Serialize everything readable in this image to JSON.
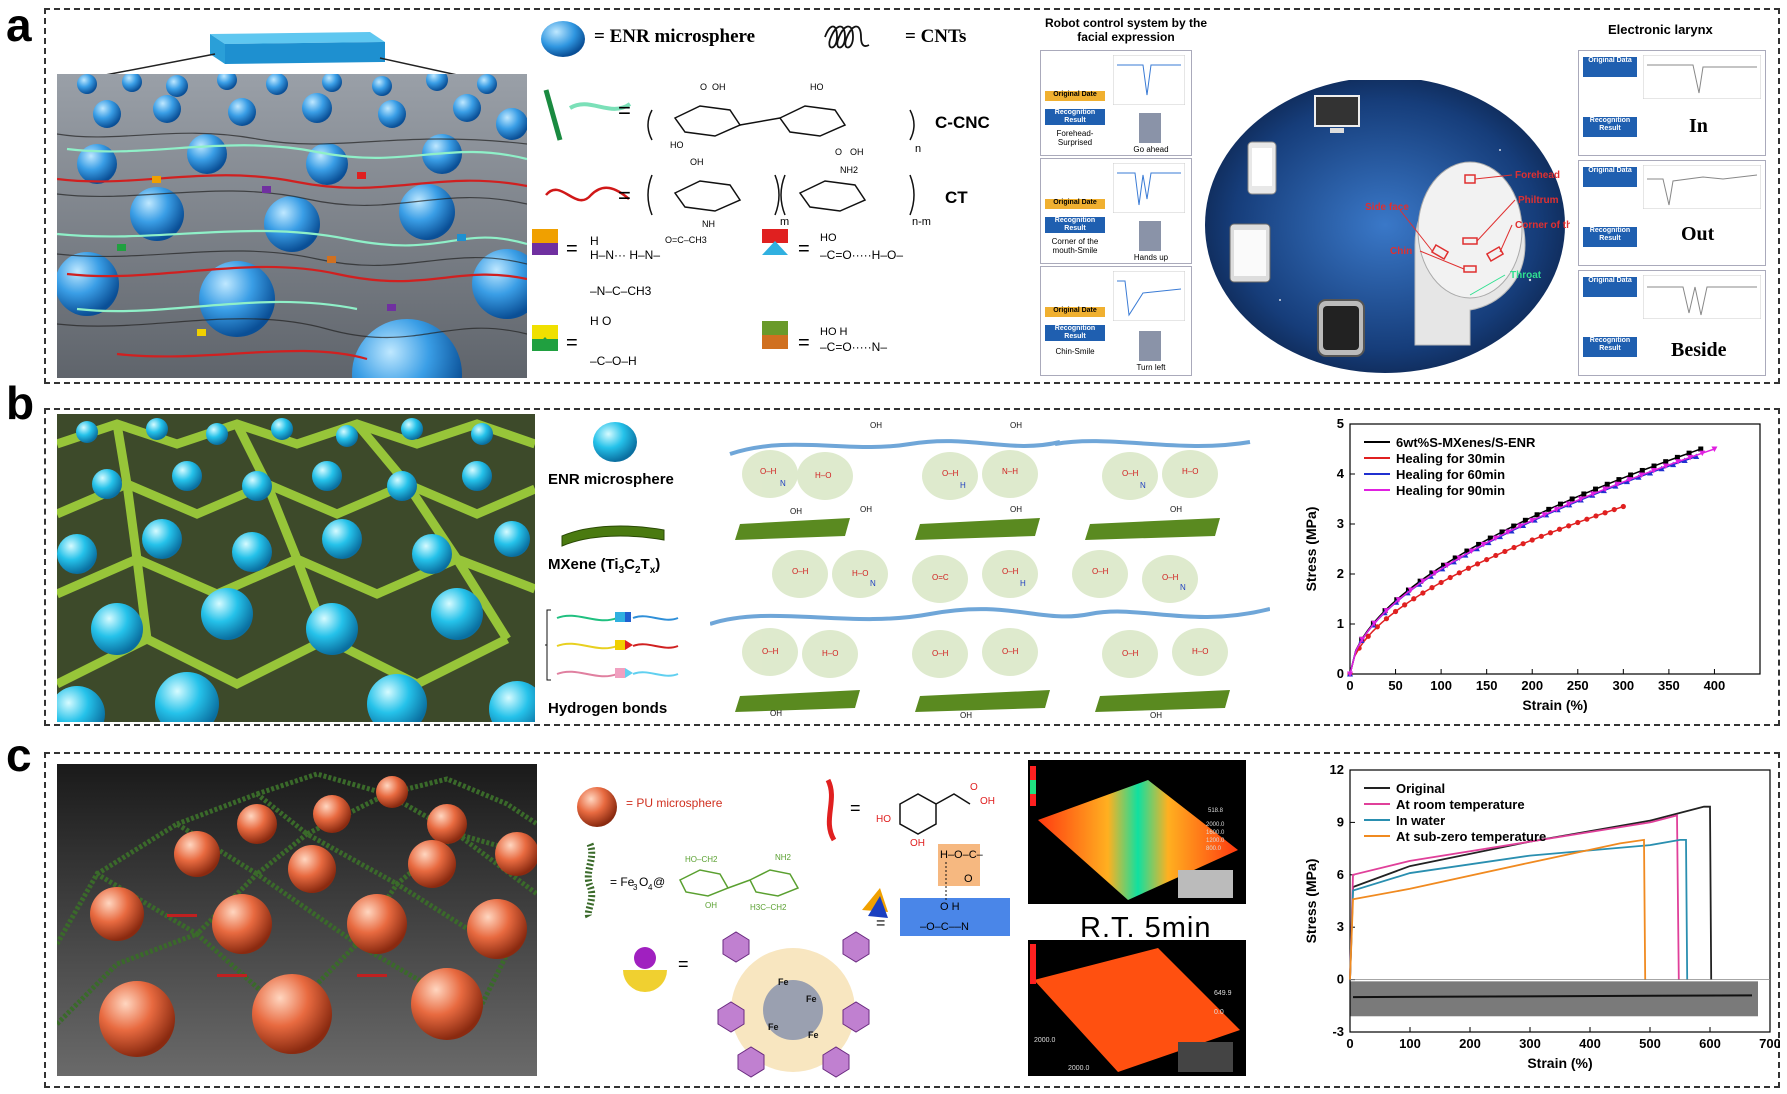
{
  "labels": {
    "a": "a",
    "b": "b",
    "c": "c"
  },
  "panel_a": {
    "legend": {
      "enr": "= ENR microsphere",
      "cnts": "= CNTs",
      "ccnc": "C-CNC",
      "ct": "CT"
    },
    "robot": {
      "title": "Robot control system by the facial expression",
      "rows": [
        {
          "orig": "Original Date",
          "recog": "Recognition Result",
          "result": "Forehead-Surprised",
          "action": "Go ahead"
        },
        {
          "orig": "Original Date",
          "recog": "Recognition Result",
          "result": "Corner of the mouth-Smile",
          "action": "Hands up"
        },
        {
          "orig": "Original Date",
          "recog": "Recognition Result",
          "result": "Chin-Smile",
          "action": "Turn left"
        }
      ]
    },
    "face": {
      "labels": [
        "Forehead",
        "Philtrum",
        "Side face",
        "Corner of the mouth",
        "Chin",
        "Throat"
      ]
    },
    "larynx": {
      "title": "Electronic larynx",
      "rows": [
        {
          "orig": "Original Data",
          "recog": "Recognition Result",
          "word": "In"
        },
        {
          "orig": "Original Data",
          "recog": "Recognition Result",
          "word": "Out"
        },
        {
          "orig": "Original Data",
          "recog": "Recognition Result",
          "word": "Beside"
        }
      ]
    }
  },
  "panel_b": {
    "legend": {
      "enr": "ENR microsphere",
      "mxene": "MXene (Ti",
      "mxene_tail": "T",
      "hbonds": "Hydrogen bonds"
    }
  },
  "panel_c": {
    "legend": {
      "pu": "= PU microsphere",
      "fe3o4": "= Fe",
      "rt": "R.T.  5min"
    }
  },
  "chart_data": [
    {
      "type": "line",
      "panel": "b",
      "xlabel": "Strain (%)",
      "ylabel": "Stress (MPa)",
      "xlim": [
        0,
        450
      ],
      "ylim": [
        0,
        5
      ],
      "xticks": [
        0,
        50,
        100,
        150,
        200,
        250,
        300,
        350,
        400
      ],
      "yticks": [
        0,
        1,
        2,
        3,
        4,
        5
      ],
      "legend_position": "top-left",
      "series": [
        {
          "name": "6wt%S-MXenes/S-ENR",
          "color": "#000000",
          "marker": "square",
          "end_x": 385,
          "end_y": 4.5
        },
        {
          "name": "Healing for 30min",
          "color": "#e02020",
          "marker": "circle",
          "end_x": 300,
          "end_y": 3.35
        },
        {
          "name": "Healing for 60min",
          "color": "#2030d0",
          "marker": "triangle",
          "end_x": 380,
          "end_y": 4.35
        },
        {
          "name": "Healing for 90min",
          "color": "#e020e0",
          "marker": "triangle-down",
          "end_x": 400,
          "end_y": 4.5
        }
      ]
    },
    {
      "type": "line",
      "panel": "c",
      "xlabel": "Strain (%)",
      "ylabel": "Stress (MPa)",
      "xlim": [
        0,
        700
      ],
      "ylim": [
        -3,
        12
      ],
      "xticks": [
        0,
        100,
        200,
        300,
        400,
        500,
        600,
        700
      ],
      "yticks": [
        -3,
        0,
        3,
        6,
        9,
        12
      ],
      "legend_position": "top-left",
      "series": [
        {
          "name": "Original",
          "color": "#222222",
          "points": [
            [
              0,
              0
            ],
            [
              5,
              5.3
            ],
            [
              100,
              6.5
            ],
            [
              300,
              7.9
            ],
            [
              500,
              9.1
            ],
            [
              590,
              9.9
            ],
            [
              600,
              9.9
            ],
            [
              602,
              0
            ]
          ]
        },
        {
          "name": "At room temperature",
          "color": "#e0409a",
          "points": [
            [
              0,
              0
            ],
            [
              5,
              6.0
            ],
            [
              100,
              6.8
            ],
            [
              300,
              7.9
            ],
            [
              500,
              9.0
            ],
            [
              545,
              9.4
            ],
            [
              548,
              0
            ]
          ]
        },
        {
          "name": "In water",
          "color": "#2a8fb0",
          "points": [
            [
              0,
              0
            ],
            [
              5,
              5.1
            ],
            [
              100,
              6.1
            ],
            [
              300,
              7.1
            ],
            [
              500,
              7.7
            ],
            [
              550,
              8.0
            ],
            [
              560,
              8.0
            ],
            [
              562,
              0
            ]
          ]
        },
        {
          "name": "At sub-zero temperature",
          "color": "#f08a20",
          "points": [
            [
              0,
              0
            ],
            [
              5,
              4.6
            ],
            [
              100,
              5.2
            ],
            [
              300,
              6.7
            ],
            [
              450,
              7.8
            ],
            [
              490,
              8.0
            ],
            [
              492,
              0
            ]
          ]
        }
      ]
    }
  ]
}
